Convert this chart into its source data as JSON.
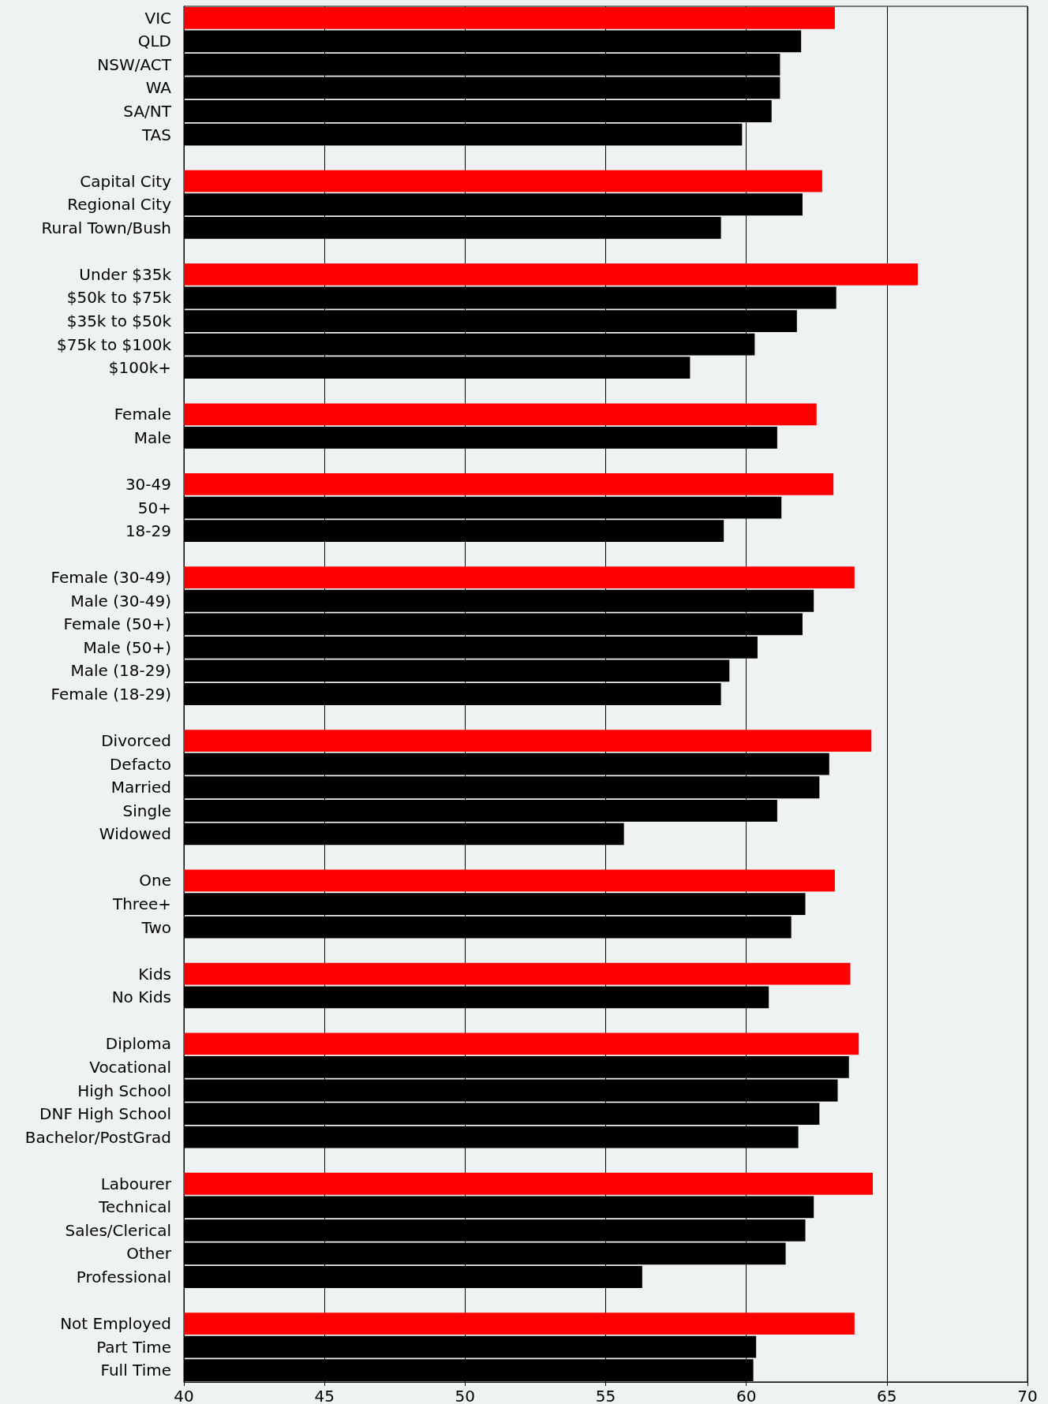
{
  "chart_data": {
    "type": "bar",
    "orientation": "horizontal",
    "categories": [
      "VIC",
      "QLD",
      "NSW/ACT",
      "WA",
      "SA/NT",
      "TAS",
      null,
      "Capital City",
      "Regional City",
      "Rural Town/Bush",
      null,
      "Under $35k",
      "$50k to $75k",
      "$35k to $50k",
      "$75k to $100k",
      "$100k+",
      null,
      "Female",
      "Male",
      null,
      "30-49",
      "50+",
      "18-29",
      null,
      "Female (30-49)",
      "Male (30-49)",
      "Female (50+)",
      "Male (50+)",
      "Male (18-29)",
      "Female (18-29)",
      null,
      "Divorced",
      "Defacto",
      "Married",
      "Single",
      "Widowed",
      null,
      "One",
      "Three+",
      "Two",
      null,
      "Kids",
      "No Kids",
      null,
      "Diploma",
      "Vocational",
      "High School",
      "DNF High School",
      "Bachelor/PostGrad",
      null,
      "Labourer",
      "Technical",
      "Sales/Clerical",
      "Other",
      "Professional",
      null,
      "Not Employed",
      "Part Time",
      "Full Time"
    ],
    "values": [
      63.15,
      61.95,
      61.2,
      61.2,
      60.9,
      59.85,
      null,
      62.7,
      62.0,
      59.1,
      null,
      66.1,
      63.2,
      61.8,
      60.3,
      58.0,
      null,
      62.5,
      61.1,
      null,
      63.1,
      61.25,
      59.2,
      null,
      63.85,
      62.4,
      62.0,
      60.4,
      59.4,
      59.1,
      null,
      64.45,
      62.95,
      62.6,
      61.1,
      55.65,
      null,
      63.15,
      62.1,
      61.6,
      null,
      63.7,
      60.8,
      null,
      64.0,
      63.65,
      63.25,
      62.6,
      61.85,
      null,
      64.5,
      62.4,
      62.1,
      61.4,
      56.3,
      null,
      63.85,
      60.35,
      60.25
    ],
    "colors": [
      "#ff0000",
      "#000000",
      "#000000",
      "#000000",
      "#000000",
      "#000000",
      null,
      "#ff0000",
      "#000000",
      "#000000",
      null,
      "#ff0000",
      "#000000",
      "#000000",
      "#000000",
      "#000000",
      null,
      "#ff0000",
      "#000000",
      null,
      "#ff0000",
      "#000000",
      "#000000",
      null,
      "#ff0000",
      "#000000",
      "#000000",
      "#000000",
      "#000000",
      "#000000",
      null,
      "#ff0000",
      "#000000",
      "#000000",
      "#000000",
      "#000000",
      null,
      "#ff0000",
      "#000000",
      "#000000",
      null,
      "#ff0000",
      "#000000",
      null,
      "#ff0000",
      "#000000",
      "#000000",
      "#000000",
      "#000000",
      null,
      "#ff0000",
      "#000000",
      "#000000",
      "#000000",
      "#000000",
      null,
      "#ff0000",
      "#000000",
      "#000000"
    ],
    "xlim": [
      40,
      70
    ],
    "xticks": [
      40,
      45,
      50,
      55,
      60,
      65,
      70
    ],
    "grid": "x"
  }
}
